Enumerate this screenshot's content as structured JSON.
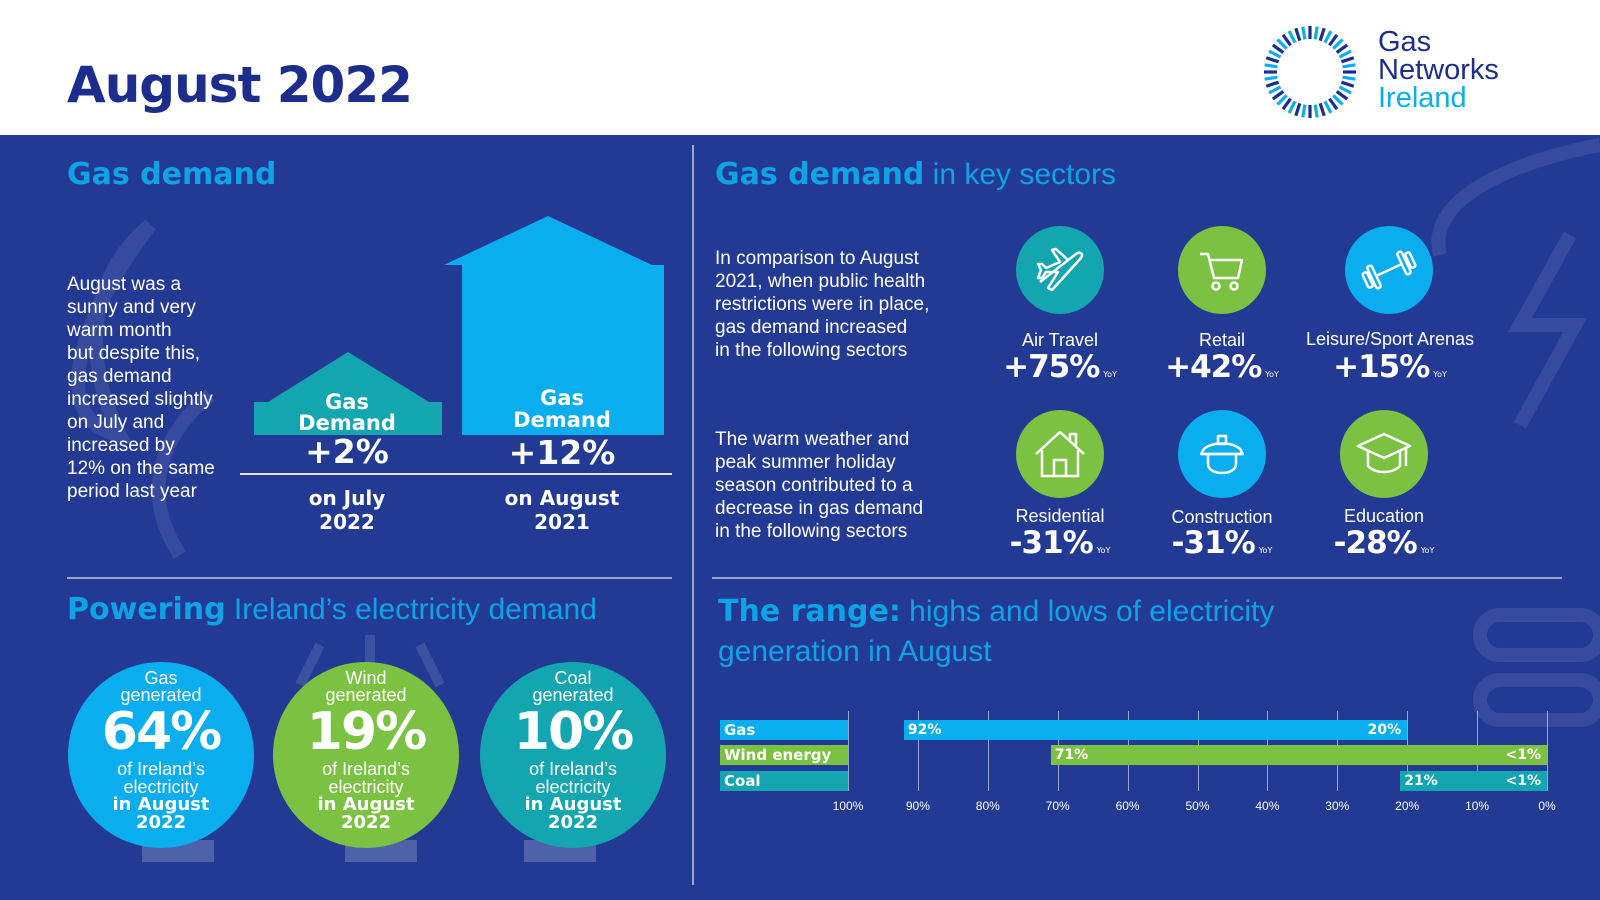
{
  "header": {
    "title": "August 2022",
    "logo_lines": [
      "Gas",
      "Networks",
      "Ireland"
    ]
  },
  "colors": {
    "navy": "#233a94",
    "light_blue": "#0aaeef",
    "teal": "#14a6b0",
    "green": "#7cc242"
  },
  "gas_demand": {
    "title": "Gas demand",
    "text_lines": [
      "August was a",
      "sunny and very",
      "warm month",
      "but despite this,",
      "gas demand",
      "increased slightly",
      "on July and",
      "increased by",
      "12% on the same",
      "period last year"
    ],
    "houses": [
      {
        "label_line1": "Gas",
        "label_line2": "Demand",
        "value": "+2%",
        "sub_line1": "on July",
        "sub_line2": "2022"
      },
      {
        "label_line1": "Gas",
        "label_line2": "Demand",
        "value": "+12%",
        "sub_line1": "on August",
        "sub_line2": "2021"
      }
    ]
  },
  "sectors": {
    "title_bold": "Gas demand",
    "title_light": " in key sectors",
    "intro_increase": [
      "In comparison to August",
      "2021, when public health",
      "restrictions were in place,",
      "gas demand increased",
      "in the following sectors"
    ],
    "intro_decrease": [
      "The warm weather and",
      "peak summer holiday",
      "season contributed to a",
      "decrease in gas demand",
      "in the following sectors"
    ],
    "yoy": "YoY",
    "items": [
      {
        "name": "Air Travel",
        "value": "+75%",
        "icon": "airplane-icon"
      },
      {
        "name": "Retail",
        "value": "+42%",
        "icon": "shopping-cart-icon"
      },
      {
        "name": "Leisure/Sport Arenas",
        "value": "+15%",
        "icon": "dumbbell-icon"
      },
      {
        "name": "Residential",
        "value": "-31%",
        "icon": "house-icon"
      },
      {
        "name": "Construction",
        "value": "-31%",
        "icon": "hard-hat-icon"
      },
      {
        "name": "Education",
        "value": "-28%",
        "icon": "graduation-cap-icon"
      }
    ]
  },
  "electricity": {
    "title_bold": "Powering",
    "title_light": " Ireland’s electricity demand",
    "circles": [
      {
        "top1": "Gas",
        "top2": "generated",
        "pct": "64%",
        "bot1": "of Ireland’s",
        "bot2": "electricity",
        "bold1": "in August",
        "bold2": "2022"
      },
      {
        "top1": "Wind",
        "top2": "generated",
        "pct": "19%",
        "bot1": "of Ireland’s",
        "bot2": "electricity",
        "bold1": "in August",
        "bold2": "2022"
      },
      {
        "top1": "Coal",
        "top2": "generated",
        "pct": "10%",
        "bot1": "of Ireland’s",
        "bot2": "electricity",
        "bold1": "in August",
        "bold2": "2022"
      }
    ]
  },
  "range": {
    "title_bold": "The range:",
    "title_light_line1": " highs and lows of electricity",
    "title_light_line2": "generation in August"
  },
  "chart_data": [
    {
      "type": "bar",
      "title": "Gas demand",
      "categories": [
        "Gas Demand on July 2022",
        "Gas Demand on August 2021"
      ],
      "values": [
        2,
        12
      ],
      "unit": "%",
      "labels": [
        "+2%",
        "+12%"
      ]
    },
    {
      "type": "bar",
      "orientation": "horizontal-range",
      "title": "The range: highs and lows of electricity generation in August",
      "x_reversed": true,
      "xlim": [
        100,
        0
      ],
      "ticks": [
        "100%",
        "90%",
        "80%",
        "70%",
        "60%",
        "50%",
        "40%",
        "30%",
        "20%",
        "10%",
        "0%"
      ],
      "tick_values": [
        100,
        90,
        80,
        70,
        60,
        50,
        40,
        30,
        20,
        10,
        0
      ],
      "series": [
        {
          "name": "Gas",
          "high": 92,
          "low": 20,
          "high_label": "92%",
          "low_label": "20%"
        },
        {
          "name": "Wind energy",
          "high": 71,
          "low": 0,
          "high_label": "71%",
          "low_label": "<1%"
        },
        {
          "name": "Coal",
          "high": 21,
          "low": 0,
          "high_label": "21%",
          "low_label": "<1%"
        }
      ]
    }
  ]
}
